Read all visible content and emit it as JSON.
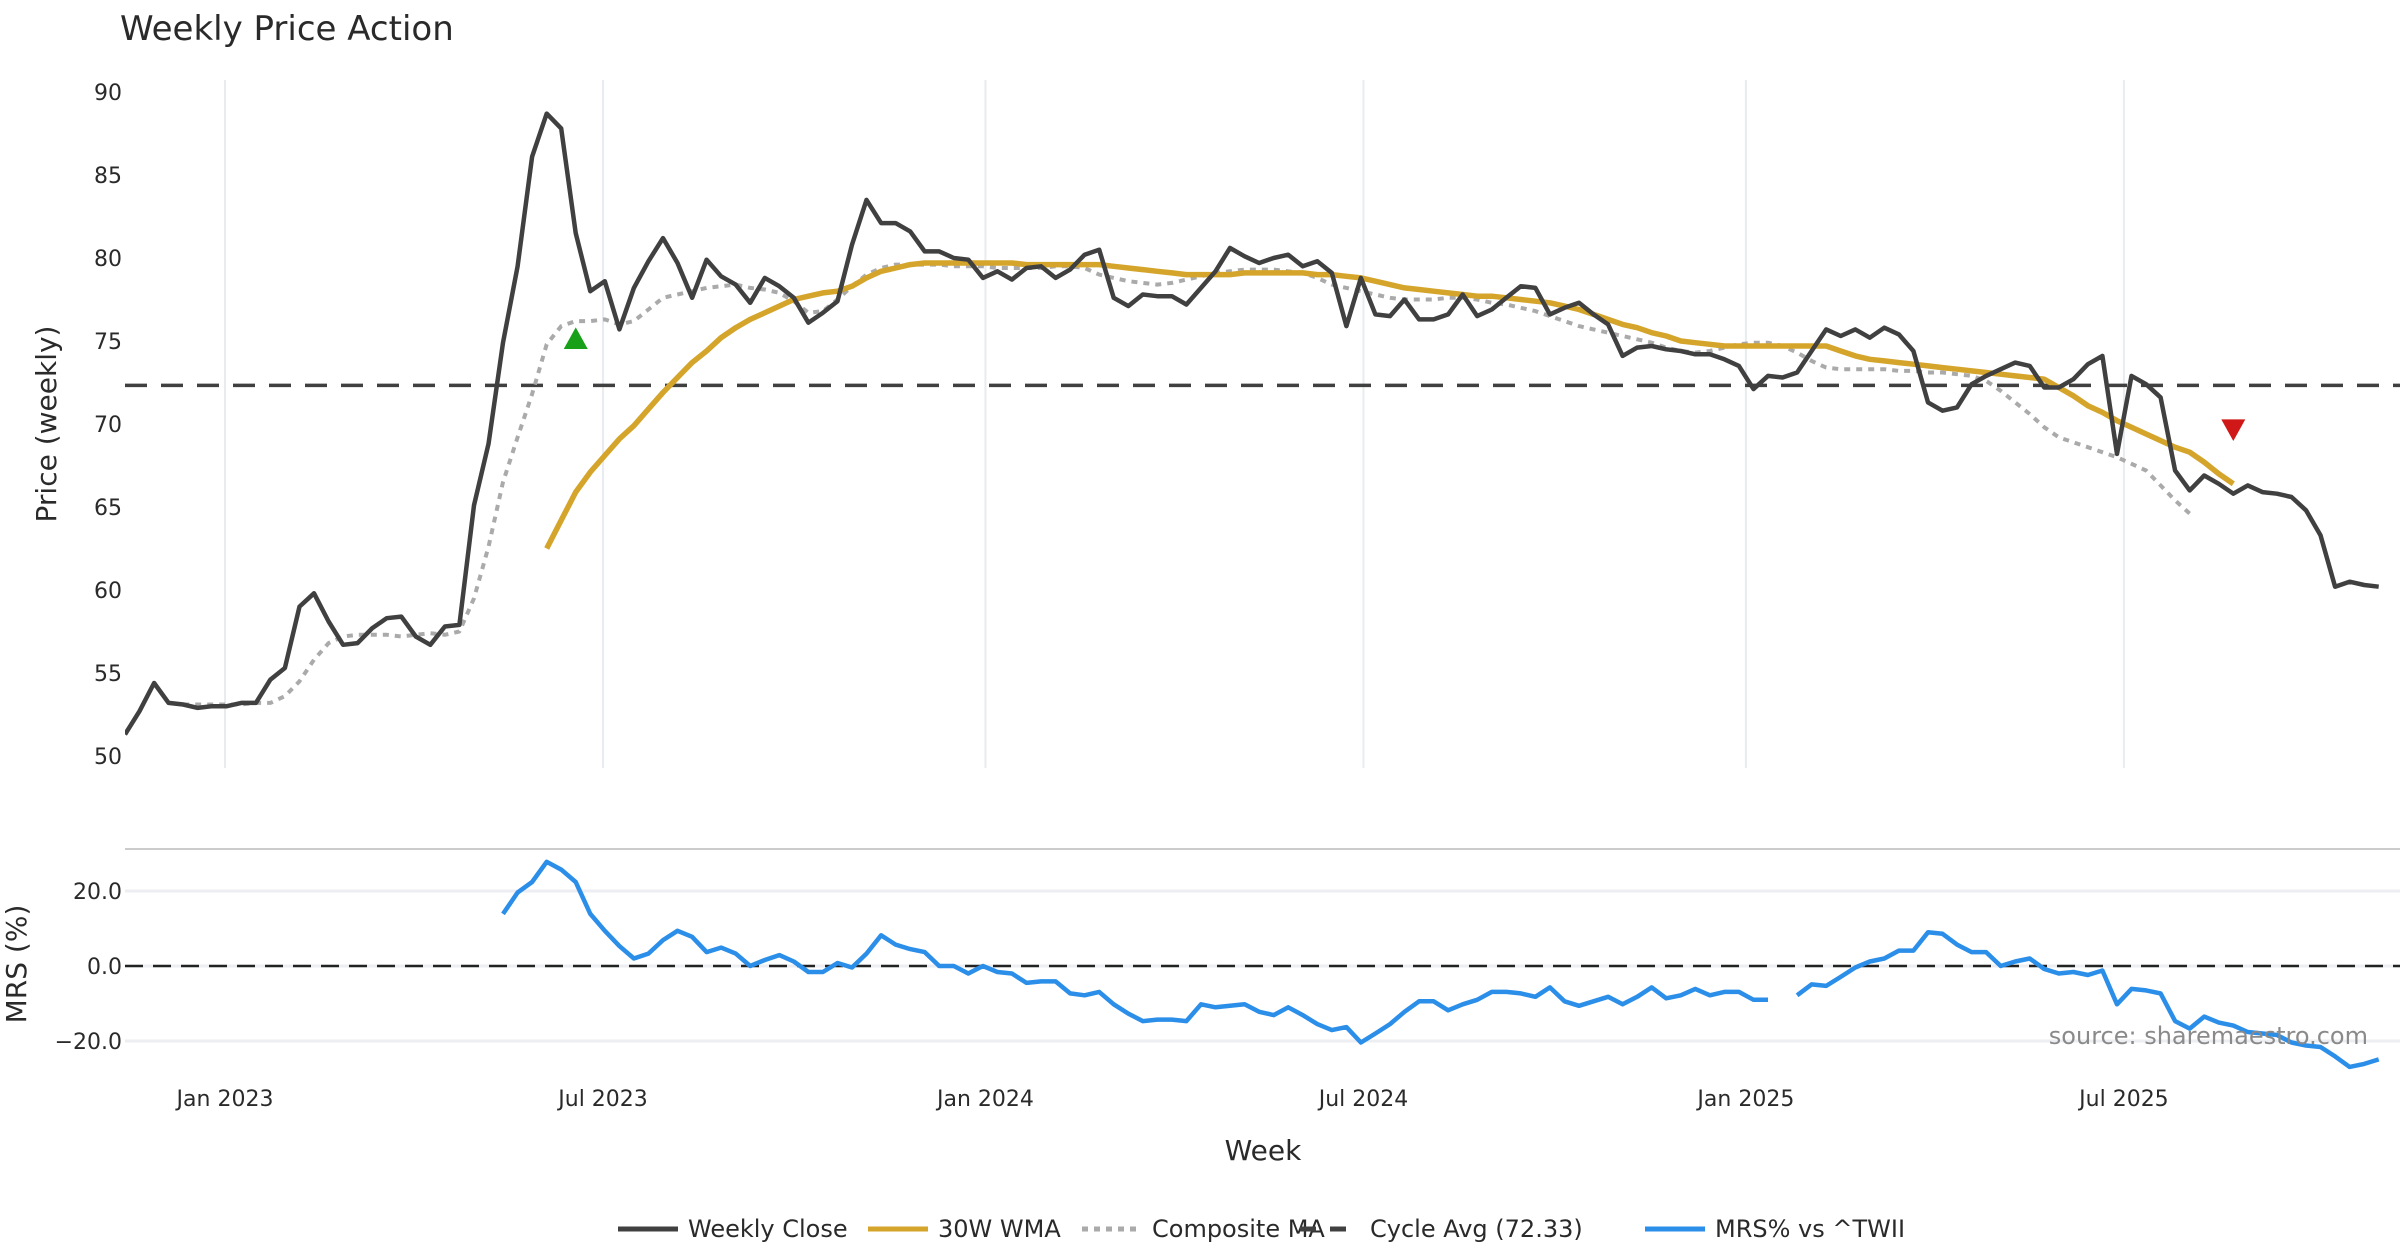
{
  "chart_data": [
    {
      "type": "line",
      "title": "Weekly Price Action",
      "xlabel": "Week",
      "ylabel": "Price (weekly)",
      "ylim": [
        50,
        90
      ],
      "yticks": [
        50,
        55,
        60,
        65,
        70,
        75,
        80,
        85,
        90
      ],
      "grid": true,
      "x_start_week_offset": -7,
      "x_unit": "weeks from Jan 2023",
      "xticks": [
        {
          "label": "Jan 2023",
          "week": 0
        },
        {
          "label": "Jul 2023",
          "week": 26
        },
        {
          "label": "Jan 2024",
          "week": 52.3
        },
        {
          "label": "Jul 2024",
          "week": 78.3
        },
        {
          "label": "Jan 2025",
          "week": 104.6
        },
        {
          "label": "Jul 2025",
          "week": 130.6
        }
      ],
      "series": [
        {
          "name": "Weekly Close",
          "color": "#404040",
          "style": "solid",
          "start_index": 0,
          "values": [
            51.3,
            52.7,
            54.4,
            53.2,
            53.1,
            52.9,
            53.0,
            53.0,
            53.2,
            53.2,
            54.6,
            55.3,
            59.0,
            59.8,
            58.1,
            56.7,
            56.8,
            57.7,
            58.3,
            58.4,
            57.2,
            56.7,
            57.8,
            57.9,
            65.1,
            68.8,
            74.9,
            79.5,
            86.1,
            88.7,
            87.8,
            81.5,
            78.0,
            78.6,
            75.7,
            78.2,
            79.8,
            81.2,
            79.7,
            77.6,
            79.9,
            78.9,
            78.4,
            77.3,
            78.8,
            78.3,
            77.6,
            76.1,
            76.7,
            77.4,
            80.8,
            83.5,
            82.1,
            82.1,
            81.6,
            80.4,
            80.4,
            80.0,
            79.9,
            78.8,
            79.2,
            78.7,
            79.4,
            79.5,
            78.8,
            79.3,
            80.2,
            80.5,
            77.6,
            77.1,
            77.8,
            77.7,
            77.7,
            77.2,
            78.2,
            79.2,
            80.6,
            80.1,
            79.7,
            80.0,
            80.2,
            79.5,
            79.8,
            79.1,
            75.9,
            78.8,
            76.6,
            76.5,
            77.5,
            76.3,
            76.3,
            76.6,
            77.8,
            76.5,
            76.9,
            77.6,
            78.3,
            78.2,
            76.6,
            77.0,
            77.3,
            76.6,
            76.0,
            74.1,
            74.6,
            74.7,
            74.5,
            74.4,
            74.2,
            74.2,
            73.9,
            73.5,
            72.1,
            72.9,
            72.8,
            73.1,
            74.4,
            75.7,
            75.3,
            75.7,
            75.2,
            75.8,
            75.4,
            74.4,
            71.3,
            70.8,
            71.0,
            72.4,
            72.9,
            73.3,
            73.7,
            73.5,
            72.2,
            72.2,
            72.7,
            73.6,
            74.1,
            68.2,
            72.9,
            72.4,
            71.6,
            67.2,
            66.0,
            66.9,
            66.4,
            65.8,
            66.3,
            65.9,
            65.8,
            65.6,
            64.8,
            63.3,
            60.2,
            60.5,
            60.3,
            60.2
          ]
        },
        {
          "name": "30W WMA",
          "color": "#d4a52a",
          "style": "solid",
          "start_index": 29,
          "values": [
            62.5,
            64.2,
            65.9,
            67.1,
            68.1,
            69.1,
            69.9,
            70.9,
            71.9,
            72.8,
            73.7,
            74.4,
            75.2,
            75.8,
            76.3,
            76.7,
            77.1,
            77.5,
            77.7,
            77.9,
            78.0,
            78.3,
            78.8,
            79.2,
            79.4,
            79.6,
            79.7,
            79.7,
            79.7,
            79.7,
            79.7,
            79.7,
            79.7,
            79.6,
            79.6,
            79.6,
            79.6,
            79.6,
            79.6,
            79.5,
            79.4,
            79.3,
            79.2,
            79.1,
            79.0,
            79.0,
            79.0,
            79.0,
            79.1,
            79.1,
            79.1,
            79.1,
            79.1,
            79.0,
            79.0,
            78.9,
            78.8,
            78.6,
            78.4,
            78.2,
            78.1,
            78.0,
            77.9,
            77.8,
            77.7,
            77.7,
            77.6,
            77.5,
            77.4,
            77.3,
            77.1,
            76.9,
            76.6,
            76.3,
            76.0,
            75.8,
            75.5,
            75.3,
            75.0,
            74.9,
            74.8,
            74.7,
            74.7,
            74.7,
            74.7,
            74.7,
            74.7,
            74.7,
            74.7,
            74.4,
            74.1,
            73.9,
            73.8,
            73.7,
            73.6,
            73.5,
            73.4,
            73.3,
            73.2,
            73.1,
            73.0,
            72.9,
            72.8,
            72.7,
            72.2,
            71.7,
            71.1,
            70.7,
            70.2,
            69.8,
            69.4,
            69.0,
            68.6,
            68.3,
            67.7,
            67.0,
            66.4
          ]
        },
        {
          "name": "Composite MA",
          "color": "#aaaaaa",
          "style": "dotted",
          "start_index": 4,
          "values": [
            53.1,
            53.1,
            53.1,
            53.1,
            53.1,
            53.2,
            53.2,
            53.6,
            54.5,
            55.8,
            56.8,
            57.2,
            57.3,
            57.3,
            57.3,
            57.2,
            57.3,
            57.4,
            57.3,
            57.5,
            59.5,
            62.6,
            66.5,
            69.2,
            71.8,
            74.8,
            75.9,
            76.2,
            76.2,
            76.3,
            76.0,
            76.2,
            76.9,
            77.6,
            77.8,
            78.0,
            78.2,
            78.3,
            78.4,
            78.2,
            78.1,
            77.9,
            77.4,
            76.7,
            76.8,
            77.5,
            78.3,
            79.0,
            79.4,
            79.6,
            79.6,
            79.6,
            79.6,
            79.5,
            79.5,
            79.5,
            79.4,
            79.4,
            79.4,
            79.4,
            79.5,
            79.5,
            79.4,
            79.0,
            78.8,
            78.6,
            78.5,
            78.4,
            78.5,
            78.7,
            78.9,
            79.1,
            79.2,
            79.3,
            79.3,
            79.3,
            79.2,
            79.1,
            78.8,
            78.4,
            78.2,
            78.0,
            77.8,
            77.6,
            77.5,
            77.5,
            77.5,
            77.6,
            77.6,
            77.5,
            77.3,
            77.2,
            77.0,
            76.8,
            76.5,
            76.2,
            75.9,
            75.7,
            75.5,
            75.3,
            75.1,
            74.9,
            74.6,
            74.4,
            74.3,
            74.4,
            74.6,
            74.8,
            74.9,
            74.9,
            74.7,
            74.3,
            73.8,
            73.4,
            73.3,
            73.3,
            73.3,
            73.3,
            73.2,
            73.2,
            73.1,
            73.1,
            73.0,
            72.9,
            72.6,
            72.0,
            71.3,
            70.6,
            69.8,
            69.2,
            68.9,
            68.6,
            68.3,
            68.0,
            67.6,
            67.2,
            66.3,
            65.4,
            64.6
          ]
        }
      ],
      "reference_lines": [
        {
          "name": "Cycle Avg (72.33)",
          "value": 72.33,
          "color": "#404040",
          "style": "dashed"
        }
      ],
      "markers": [
        {
          "type": "buy",
          "shape": "triangle-up",
          "color": "#18a018",
          "week_index": 31,
          "value": 75.1
        },
        {
          "type": "sell",
          "shape": "triangle-down",
          "color": "#d01818",
          "week_index": 145,
          "value": 69.7
        }
      ]
    },
    {
      "type": "line",
      "ylabel": "MRS (%)",
      "ylim": [
        -30,
        32
      ],
      "yticks": [
        20.0,
        0.0,
        -20.0
      ],
      "ytick_labels": [
        "20.0",
        "0.0",
        "−20.0"
      ],
      "series": [
        {
          "name": "MRS% vs ^TWII",
          "color": "#2b8ee8",
          "style": "solid",
          "start_index": 26,
          "values": [
            13.9,
            19.6,
            22.4,
            27.8,
            25.7,
            22.4,
            13.9,
            9.4,
            5.3,
            2.0,
            3.3,
            6.9,
            9.4,
            7.8,
            3.7,
            4.9,
            3.3,
            0.0,
            1.6,
            2.9,
            1.2,
            -1.6,
            -1.6,
            0.8,
            -0.4,
            3.3,
            8.2,
            5.7,
            4.5,
            3.7,
            0.0,
            0.0,
            -2.0,
            0.0,
            -1.6,
            -2.0,
            -4.5,
            -4.1,
            -4.1,
            -7.3,
            -7.8,
            -6.9,
            -10.2,
            -12.7,
            -14.7,
            -14.3,
            -14.3,
            -14.7,
            -10.2,
            -11.0,
            -10.6,
            -10.2,
            -12.2,
            -13.1,
            -11.0,
            -13.1,
            -15.5,
            -17.1,
            -16.3,
            -20.4,
            -18.0,
            -15.5,
            -12.2,
            -9.4,
            -9.4,
            -11.8,
            -10.2,
            -9.0,
            -6.9,
            -6.9,
            -7.3,
            -8.2,
            -5.7,
            -9.4,
            -10.6,
            -9.4,
            -8.2,
            -10.2,
            -8.2,
            -5.7,
            -8.6,
            -7.8,
            -6.1,
            -7.8,
            -6.9,
            -6.9,
            -9.0,
            -9.0,
            null,
            -7.8,
            -4.9,
            -5.3,
            -2.9,
            -0.4,
            1.2,
            2.0,
            4.1,
            4.1,
            9.0,
            8.6,
            5.7,
            3.7,
            3.7,
            0.0,
            1.2,
            2.0,
            -0.8,
            -2.0,
            -1.6,
            -2.4,
            -1.2,
            -10.2,
            -6.1,
            -6.5,
            -7.3,
            -14.7,
            -16.7,
            -13.5,
            -15.1,
            -15.9,
            -17.6,
            -18.0,
            -18.4,
            -20.4,
            -21.2,
            -21.6,
            -24.1,
            -26.9,
            -26.1,
            -24.9
          ]
        }
      ],
      "reference_lines": [
        {
          "name": "zero",
          "value": 0,
          "color": "#222222",
          "style": "dashed"
        }
      ]
    }
  ],
  "legend": {
    "placement": "bottom-center",
    "items": [
      {
        "label": "Weekly Close",
        "color": "#404040",
        "style": "solid"
      },
      {
        "label": "30W WMA",
        "color": "#d4a52a",
        "style": "solid"
      },
      {
        "label": "Composite MA",
        "color": "#aaaaaa",
        "style": "dotted"
      },
      {
        "label": "Cycle Avg (72.33)",
        "color": "#404040",
        "style": "dashed"
      },
      {
        "label": "MRS% vs ^TWII",
        "color": "#2b8ee8",
        "style": "solid"
      }
    ]
  },
  "source_note": "source: sharemaestro.com"
}
